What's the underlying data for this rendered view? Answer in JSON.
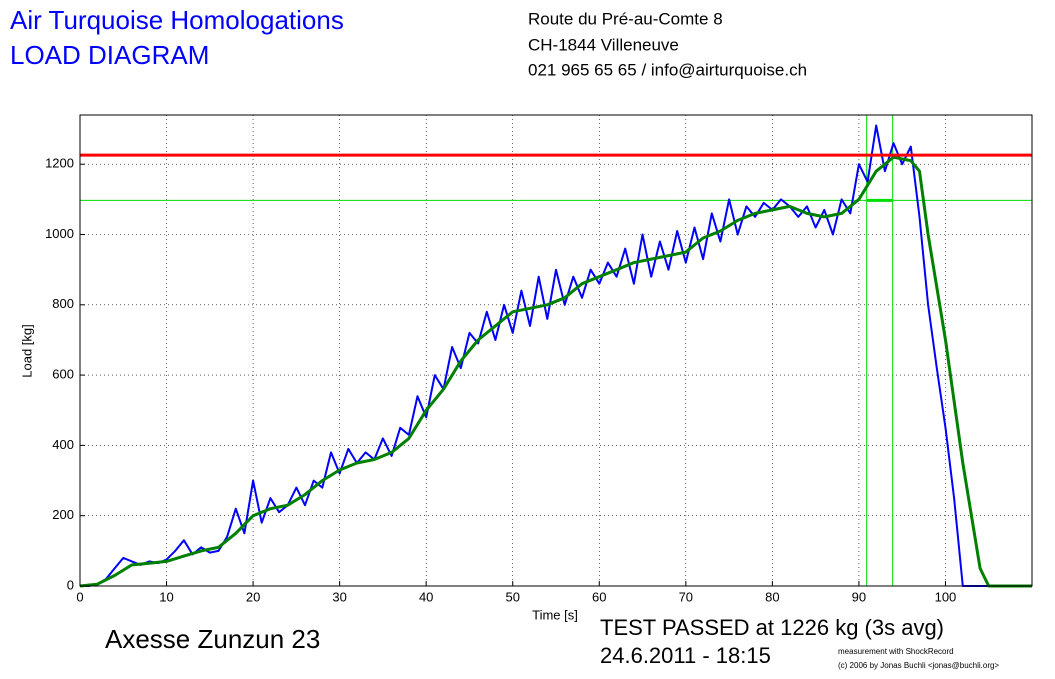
{
  "chart_data": {
    "type": "line",
    "title": "Air Turquoise Homologations",
    "subtitle": "LOAD DIAGRAM",
    "address": [
      "Route du Pré-au-Comte 8",
      "CH-1844 Villeneuve",
      "021 965 65 65 / info@airturquoise.ch"
    ],
    "glider": "Axesse Zunzun 23",
    "result": "TEST PASSED at 1226 kg (3s avg)",
    "date": "24.6.2011 - 18:15",
    "credits": [
      "measurement with ShockRecord",
      "(c) 2006 by Jonas Buchli <jonas@buchli.org>"
    ],
    "xlabel": "Time [s]",
    "ylabel": "Load [kg]",
    "xlim": [
      0,
      110
    ],
    "ylim": [
      0,
      1340
    ],
    "xticks": [
      0,
      10,
      20,
      30,
      40,
      50,
      60,
      70,
      80,
      90,
      100
    ],
    "yticks": [
      0,
      200,
      400,
      600,
      800,
      1000,
      1200
    ],
    "grid": true,
    "threshold": {
      "value": 1226,
      "color": "#ff0000"
    },
    "window": {
      "x": [
        90.9,
        93.9
      ],
      "level": 1097,
      "color": "#00dd00"
    },
    "series": [
      {
        "color": "#0000ff",
        "x": [
          0,
          1,
          2,
          3,
          4,
          5,
          6,
          7,
          8,
          9,
          10,
          11,
          12,
          13,
          14,
          15,
          16,
          17,
          18,
          19,
          20,
          21,
          22,
          23,
          24,
          25,
          26,
          27,
          28,
          29,
          30,
          31,
          32,
          33,
          34,
          35,
          36,
          37,
          38,
          39,
          40,
          41,
          42,
          43,
          44,
          45,
          46,
          47,
          48,
          49,
          50,
          51,
          52,
          53,
          54,
          55,
          56,
          57,
          58,
          59,
          60,
          61,
          62,
          63,
          64,
          65,
          66,
          67,
          68,
          69,
          70,
          71,
          72,
          73,
          74,
          75,
          76,
          77,
          78,
          79,
          80,
          81,
          82,
          83,
          84,
          85,
          86,
          87,
          88,
          89,
          90,
          91,
          92,
          93,
          94,
          95,
          96,
          97,
          98,
          99,
          100,
          101,
          102,
          103,
          110
        ],
        "values": [
          0,
          0,
          5,
          20,
          50,
          80,
          70,
          60,
          70,
          65,
          75,
          100,
          130,
          90,
          110,
          95,
          100,
          140,
          220,
          150,
          300,
          180,
          250,
          210,
          230,
          280,
          230,
          300,
          280,
          380,
          320,
          390,
          350,
          380,
          360,
          420,
          370,
          450,
          430,
          540,
          480,
          600,
          560,
          680,
          620,
          720,
          690,
          780,
          700,
          800,
          720,
          840,
          740,
          880,
          760,
          900,
          800,
          880,
          820,
          900,
          860,
          920,
          880,
          960,
          860,
          1000,
          880,
          980,
          900,
          1010,
          920,
          1020,
          930,
          1060,
          980,
          1100,
          1000,
          1080,
          1050,
          1090,
          1070,
          1100,
          1080,
          1050,
          1080,
          1020,
          1070,
          1000,
          1100,
          1060,
          1200,
          1150,
          1310,
          1180,
          1260,
          1200,
          1250,
          1050,
          800,
          620,
          450,
          250,
          0,
          0,
          0
        ]
      },
      {
        "color": "#008000",
        "x": [
          0,
          2,
          4,
          6,
          8,
          10,
          12,
          14,
          16,
          18,
          20,
          22,
          24,
          26,
          28,
          30,
          32,
          34,
          36,
          38,
          40,
          42,
          44,
          46,
          48,
          50,
          52,
          54,
          56,
          58,
          60,
          62,
          64,
          66,
          68,
          70,
          72,
          74,
          76,
          78,
          80,
          82,
          84,
          86,
          88,
          90,
          92,
          94,
          96,
          97,
          98,
          100,
          102,
          104,
          105,
          110
        ],
        "values": [
          0,
          5,
          30,
          60,
          65,
          70,
          85,
          100,
          110,
          150,
          200,
          220,
          230,
          260,
          300,
          330,
          350,
          360,
          380,
          420,
          500,
          560,
          640,
          700,
          740,
          780,
          790,
          800,
          820,
          860,
          880,
          900,
          920,
          930,
          940,
          950,
          990,
          1010,
          1040,
          1060,
          1070,
          1080,
          1060,
          1050,
          1060,
          1100,
          1180,
          1220,
          1210,
          1180,
          1000,
          700,
          350,
          50,
          0,
          0
        ]
      }
    ]
  }
}
